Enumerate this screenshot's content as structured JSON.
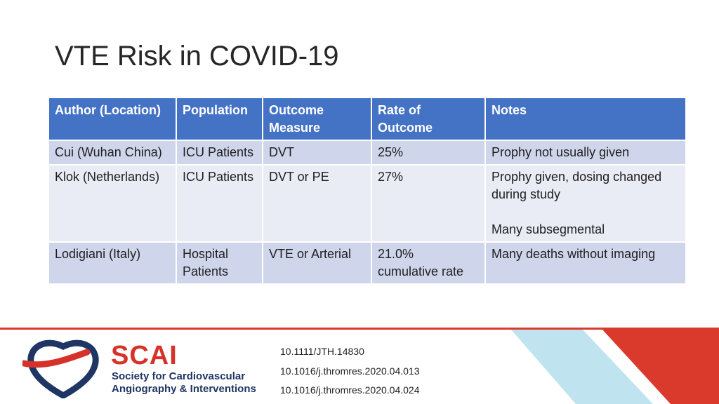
{
  "slide": {
    "title": "VTE Risk in COVID-19"
  },
  "table": {
    "headers": [
      "Author (Location)",
      "Population",
      "Outcome\nMeasure",
      "Rate of\nOutcome",
      "Notes"
    ],
    "rows": [
      [
        "Cui (Wuhan China)",
        "ICU Patients",
        "DVT",
        "25%",
        "Prophy not usually given"
      ],
      [
        "Klok (Netherlands)",
        "ICU Patients",
        "DVT or PE",
        "27%",
        "Prophy given, dosing changed\nduring study\n\nMany subsegmental"
      ],
      [
        "Lodigiani (Italy)",
        "Hospital\nPatients",
        "VTE or Arterial",
        "21.0%\ncumulative rate",
        "Many deaths without imaging"
      ]
    ]
  },
  "footer": {
    "logo": {
      "wordmark": "SCAI",
      "subtitle_line1": "Society for Cardiovascular",
      "subtitle_line2": "Angiography & Interventions",
      "colors": {
        "red": "#d6322a",
        "navy": "#1f3563"
      }
    },
    "references": [
      "10.1111/JTH.14830",
      "10.1016/j.thromres.2020.04.013",
      "10.1016/j.thromres.2020.04.024"
    ],
    "colors": {
      "red": "#d93a2b",
      "light_blue": "#bfe3ef",
      "line": "#d93a2b"
    }
  },
  "theme": {
    "header_bg": "#4472c4",
    "row_odd": "#cfd5ea",
    "row_even": "#e9ebf5"
  }
}
